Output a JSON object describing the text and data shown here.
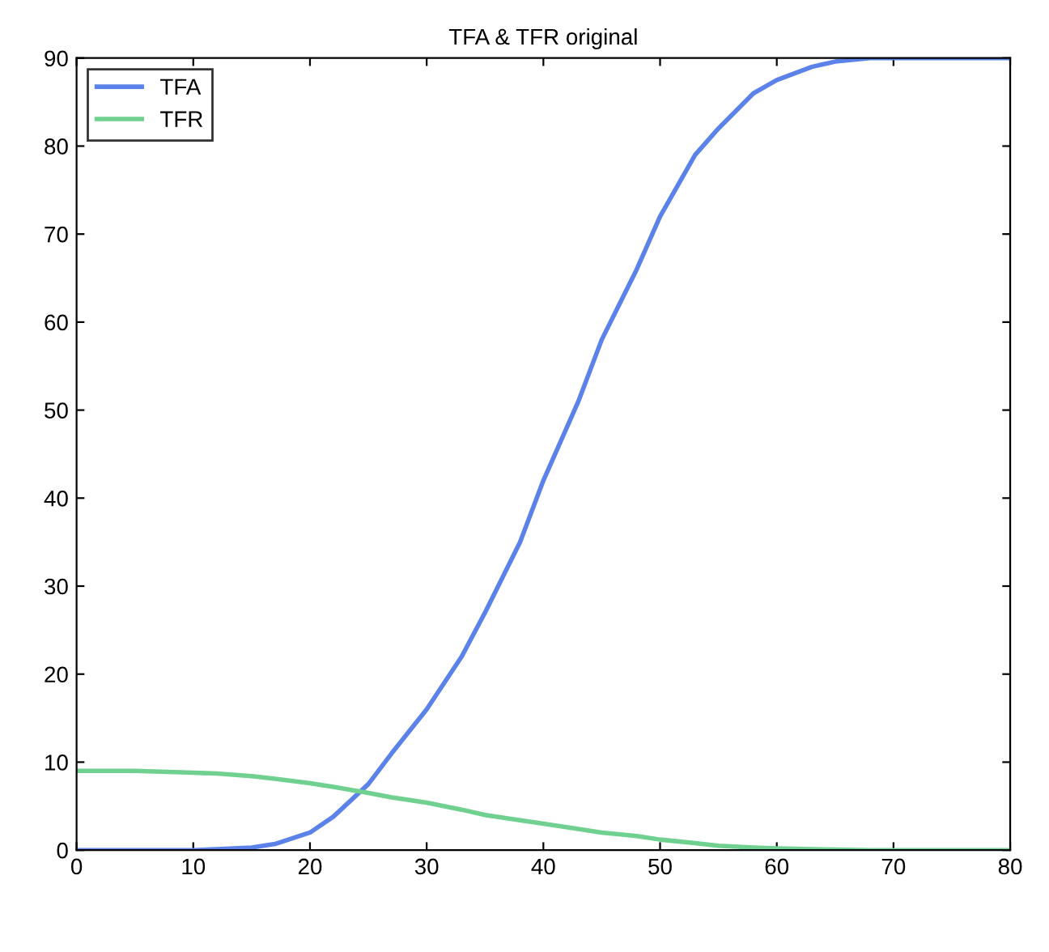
{
  "chart_data": {
    "type": "line",
    "title": "TFA & TFR original",
    "x": [
      0,
      5,
      10,
      12,
      15,
      17,
      20,
      22,
      25,
      27,
      30,
      33,
      35,
      38,
      40,
      43,
      45,
      48,
      50,
      53,
      55,
      58,
      60,
      63,
      65,
      68,
      70,
      75,
      80
    ],
    "series": [
      {
        "name": "TFA",
        "color": "#5b82e8",
        "values": [
          0,
          0,
          0,
          0.1,
          0.3,
          0.7,
          2,
          3.8,
          7.5,
          11,
          16,
          22,
          27,
          35,
          42,
          51,
          58,
          66,
          72,
          79,
          82,
          86,
          87.5,
          89,
          89.6,
          90,
          90,
          90,
          90
        ]
      },
      {
        "name": "TFR",
        "color": "#6fd08f",
        "values": [
          9,
          9,
          8.8,
          8.7,
          8.4,
          8.1,
          7.6,
          7.2,
          6.5,
          6,
          5.4,
          4.6,
          4,
          3.4,
          3,
          2.4,
          2,
          1.6,
          1.2,
          0.8,
          0.5,
          0.3,
          0.2,
          0.1,
          0.05,
          0,
          0,
          0,
          0
        ]
      }
    ],
    "xlim": [
      0,
      80
    ],
    "xticks": [
      0,
      10,
      20,
      30,
      40,
      50,
      60,
      70,
      80
    ],
    "ylim": [
      0,
      90
    ],
    "yticks": [
      0,
      10,
      20,
      30,
      40,
      50,
      60,
      70,
      80,
      90
    ],
    "grid": false,
    "legend": "top left",
    "marker": "none",
    "line_style": "solid"
  }
}
